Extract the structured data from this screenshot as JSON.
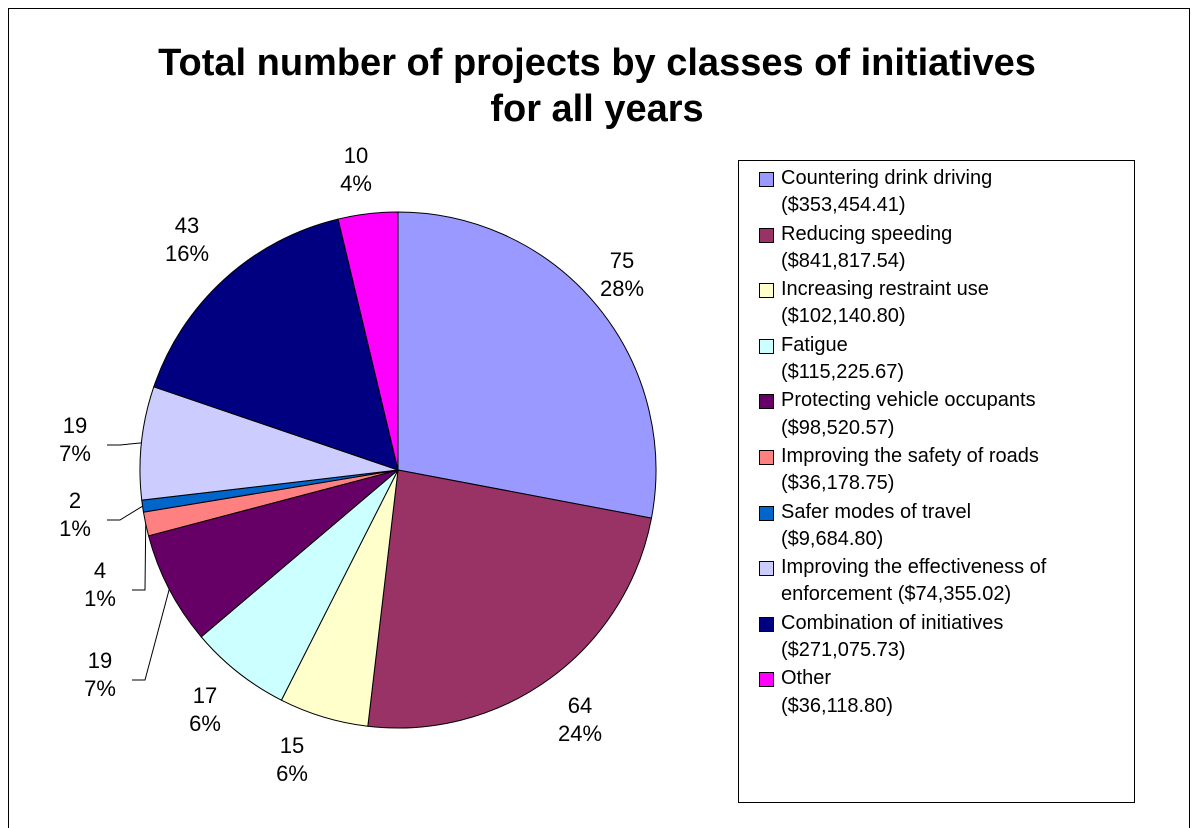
{
  "chart_data": {
    "type": "pie",
    "title": "Total number of projects by classes of initiatives\nfor all years",
    "categories": [
      "Countering drink driving\n($353,454.41)",
      "Reducing speeding\n($841,817.54)",
      "Increasing restraint use\n($102,140.80)",
      "Fatigue\n($115,225.67)",
      "Protecting vehicle occupants\n($98,520.57)",
      "Improving the safety of roads\n($36,178.75)",
      "Safer modes of travel\n($9,684.80)",
      "Improving the effectiveness of\nenforcement ($74,355.02)",
      "Combination of initiatives\n($271,075.73)",
      "Other\n($36,118.80)"
    ],
    "values": [
      75,
      64,
      15,
      17,
      19,
      4,
      2,
      19,
      43,
      10
    ],
    "percent_labels": [
      "28%",
      "24%",
      "6%",
      "6%",
      "7%",
      "1%",
      "1%",
      "7%",
      "16%",
      "4%"
    ],
    "colors": [
      "#9999ff",
      "#993366",
      "#ffffcc",
      "#ccffff",
      "#660066",
      "#ff8080",
      "#0066cc",
      "#ccccff",
      "#000080",
      "#ff00ff"
    ],
    "legend": "right"
  }
}
